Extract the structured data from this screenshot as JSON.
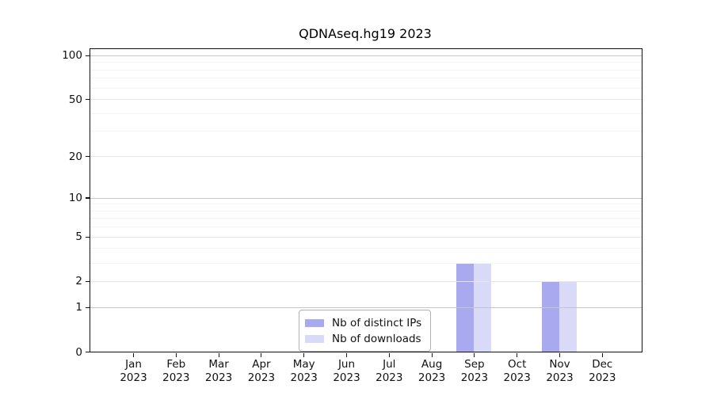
{
  "chart_data": {
    "type": "bar",
    "title": "QDNAseq.hg19 2023",
    "categories": [
      "Jan",
      "Feb",
      "Mar",
      "Apr",
      "May",
      "Jun",
      "Jul",
      "Aug",
      "Sep",
      "Oct",
      "Nov",
      "Dec"
    ],
    "category_year": "2023",
    "series": [
      {
        "name": "Nb of distinct IPs",
        "color": "#a9a9f0",
        "values": [
          0,
          0,
          0,
          0,
          0,
          0,
          0,
          0,
          3,
          0,
          2,
          0
        ]
      },
      {
        "name": "Nb of downloads",
        "color": "#d9d9f8",
        "values": [
          0,
          0,
          0,
          0,
          0,
          0,
          0,
          0,
          3,
          0,
          2,
          0
        ]
      }
    ],
    "xlabel": "",
    "ylabel": "",
    "yscale": "log1p",
    "ylim": [
      0,
      110
    ],
    "yticks": [
      0,
      1,
      2,
      5,
      10,
      20,
      50,
      100
    ],
    "minor_yticks": [
      3,
      4,
      6,
      7,
      8,
      9,
      30,
      40,
      60,
      70,
      80,
      90
    ],
    "grid": "horizontal",
    "legend_position": "bottom-center",
    "axis_color": "#111111",
    "background_color": "#ffffff"
  }
}
